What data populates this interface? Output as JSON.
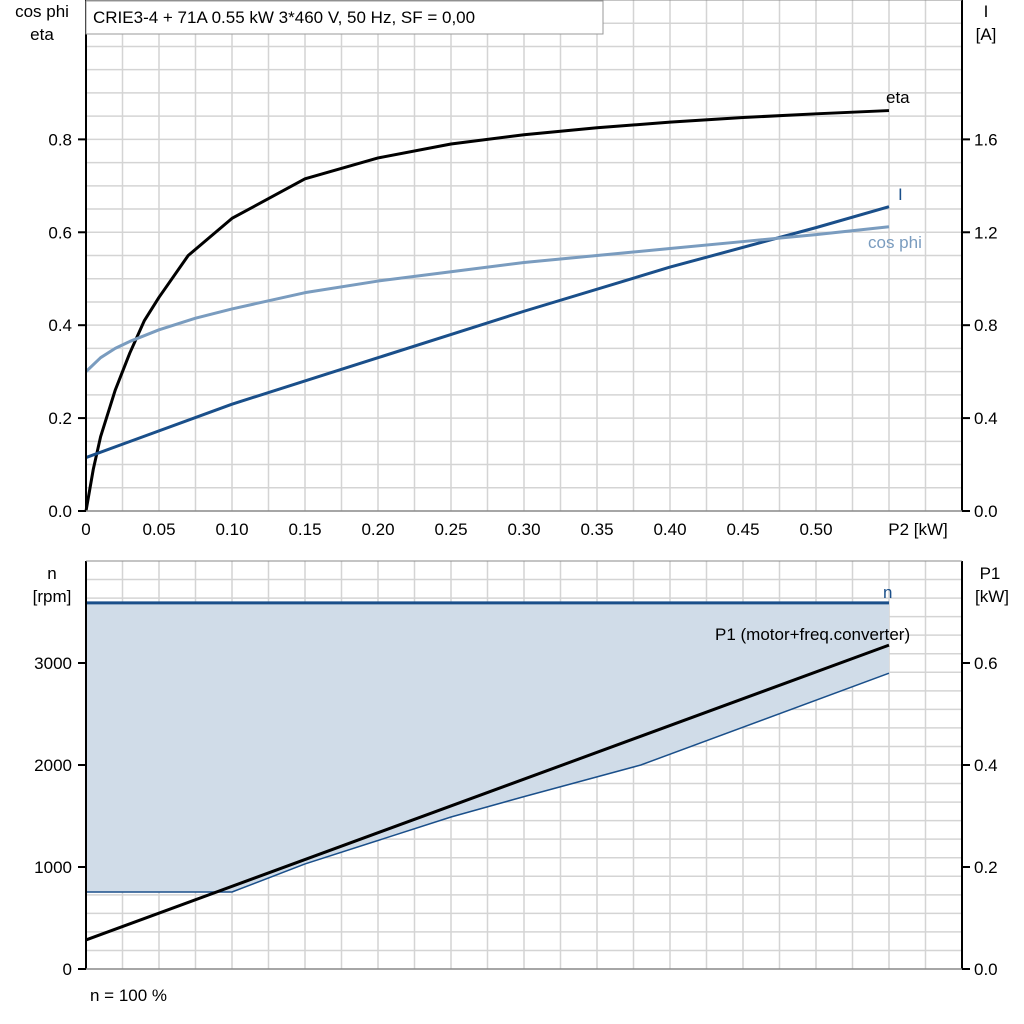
{
  "title": "CRIE3-4 + 71A   0.55 kW   3*460 V, 50 Hz, SF = 0,00",
  "footer": "n = 100 %",
  "colors": {
    "eta": "#000000",
    "I": "#1a4f8a",
    "cos_phi": "#7a9cbf",
    "n": "#1a4f8a",
    "P1": "#000000",
    "band_fill": "#d0dce8",
    "grid": "#d4d4d4"
  },
  "chart_data": [
    {
      "type": "line",
      "xlabel": "P2 [kW]",
      "ylabel_left": [
        "cos phi",
        "eta"
      ],
      "ylabel_right": [
        "I",
        "[A]"
      ],
      "xlim": [
        0,
        0.6
      ],
      "ylim_left": [
        0,
        1.1
      ],
      "ylim_right": [
        0,
        2.2
      ],
      "grid": true,
      "x_ticks": [
        "0",
        "0.05",
        "0.10",
        "0.15",
        "0.20",
        "0.25",
        "0.30",
        "0.35",
        "0.40",
        "0.45",
        "0.50"
      ],
      "left_ticks": [
        "0.0",
        "0.2",
        "0.4",
        "0.6",
        "0.8"
      ],
      "right_ticks": [
        "0.0",
        "0.4",
        "0.8",
        "1.2",
        "1.6"
      ],
      "series": [
        {
          "name": "eta",
          "axis": "left",
          "x": [
            0,
            0.005,
            0.01,
            0.02,
            0.03,
            0.04,
            0.05,
            0.07,
            0.1,
            0.15,
            0.2,
            0.25,
            0.3,
            0.35,
            0.4,
            0.45,
            0.5,
            0.55
          ],
          "y": [
            0,
            0.09,
            0.16,
            0.26,
            0.34,
            0.41,
            0.46,
            0.55,
            0.63,
            0.715,
            0.76,
            0.79,
            0.81,
            0.825,
            0.837,
            0.847,
            0.855,
            0.862
          ]
        },
        {
          "name": "I",
          "axis": "right",
          "x": [
            0,
            0.1,
            0.2,
            0.3,
            0.4,
            0.5,
            0.55
          ],
          "y": [
            0.23,
            0.46,
            0.66,
            0.86,
            1.05,
            1.22,
            1.31
          ]
        },
        {
          "name": "cos phi",
          "axis": "left",
          "x": [
            0,
            0.01,
            0.02,
            0.03,
            0.05,
            0.075,
            0.1,
            0.15,
            0.2,
            0.25,
            0.3,
            0.35,
            0.4,
            0.45,
            0.5,
            0.55
          ],
          "y": [
            0.3,
            0.33,
            0.35,
            0.365,
            0.39,
            0.415,
            0.435,
            0.47,
            0.495,
            0.515,
            0.535,
            0.55,
            0.565,
            0.58,
            0.595,
            0.612
          ]
        }
      ]
    },
    {
      "type": "line",
      "ylabel_left": [
        "n",
        "[rpm]"
      ],
      "ylabel_right": [
        "P1",
        "[kW]"
      ],
      "xlim": [
        0,
        0.6
      ],
      "ylim_left": [
        0,
        4000
      ],
      "ylim_right": [
        0,
        0.8
      ],
      "grid": true,
      "left_ticks": [
        "0",
        "1000",
        "2000",
        "3000"
      ],
      "right_ticks": [
        "0.0",
        "0.2",
        "0.4",
        "0.6"
      ],
      "series": [
        {
          "name": "n",
          "axis": "left",
          "x": [
            0,
            0.55
          ],
          "y": [
            3590,
            3590
          ]
        },
        {
          "name": "n lower limit",
          "axis": "left",
          "x": [
            0,
            0.1,
            0.15,
            0.25,
            0.3,
            0.38,
            0.55
          ],
          "y": [
            755,
            755,
            1030,
            1490,
            1690,
            2000,
            2900
          ]
        },
        {
          "name": "P1 (motor+freq.converter)",
          "axis": "right",
          "x": [
            0,
            0.55
          ],
          "y": [
            0.057,
            0.635
          ]
        }
      ]
    }
  ]
}
